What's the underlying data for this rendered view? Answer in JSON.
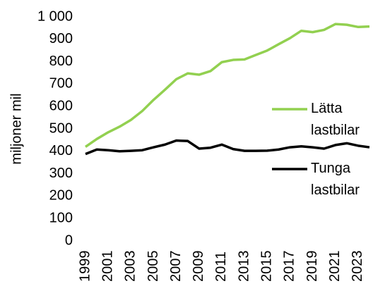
{
  "chart_data": {
    "type": "line",
    "y_label": "miljoner mil",
    "x": [
      1999,
      2000,
      2001,
      2002,
      2003,
      2004,
      2005,
      2006,
      2007,
      2008,
      2009,
      2010,
      2011,
      2012,
      2013,
      2014,
      2015,
      2016,
      2017,
      2018,
      2019,
      2020,
      2021,
      2022,
      2023,
      2024
    ],
    "xlim": [
      1999,
      2024
    ],
    "xticks": [
      1999,
      2001,
      2003,
      2005,
      2007,
      2009,
      2011,
      2013,
      2015,
      2017,
      2019,
      2021,
      2023
    ],
    "ylim": [
      0,
      1000
    ],
    "yticks": [
      0,
      100,
      200,
      300,
      400,
      500,
      600,
      700,
      800,
      900,
      {
        "value": 1000,
        "label": "1 000"
      }
    ],
    "grid": false,
    "legend": "right",
    "series": [
      {
        "name": "Lätta lastbilar",
        "color": "#92d050",
        "values": [
          420,
          455,
          485,
          510,
          540,
          580,
          630,
          675,
          722,
          748,
          742,
          758,
          798,
          808,
          810,
          830,
          850,
          878,
          905,
          938,
          932,
          942,
          968,
          965,
          955,
          957
        ]
      },
      {
        "name": "Tunga lastbilar",
        "color": "#000000",
        "values": [
          388,
          408,
          405,
          400,
          402,
          405,
          418,
          430,
          448,
          446,
          412,
          416,
          430,
          410,
          402,
          402,
          403,
          408,
          418,
          422,
          418,
          412,
          428,
          436,
          425,
          418
        ]
      }
    ]
  }
}
